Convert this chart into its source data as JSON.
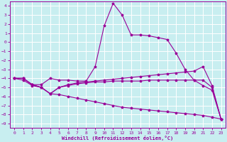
{
  "xlabel": "Windchill (Refroidissement éolien,°C)",
  "background_color": "#c8eef0",
  "line_color": "#990099",
  "grid_color": "#ffffff",
  "ylim": [
    -9.5,
    4.5
  ],
  "xlim": [
    -0.5,
    23.5
  ],
  "yticks": [
    -9,
    -8,
    -7,
    -6,
    -5,
    -4,
    -3,
    -2,
    -1,
    0,
    1,
    2,
    3,
    4
  ],
  "xticks": [
    0,
    1,
    2,
    3,
    4,
    5,
    6,
    7,
    8,
    9,
    10,
    11,
    12,
    13,
    14,
    15,
    16,
    17,
    18,
    19,
    20,
    21,
    22,
    23
  ],
  "lines": [
    {
      "x": [
        0,
        1,
        2,
        3,
        4,
        5,
        6,
        7,
        8,
        9,
        10,
        11,
        12,
        13,
        14,
        15,
        16,
        17,
        18,
        19,
        20,
        21,
        22,
        23
      ],
      "y": [
        -4,
        -4,
        -4.7,
        -4.7,
        -4.0,
        -4.2,
        -4.2,
        -4.3,
        -4.3,
        -2.7,
        1.8,
        4.3,
        3.0,
        0.8,
        0.8,
        0.7,
        0.5,
        0.3,
        -1.2,
        -3.0,
        -4.2,
        -4.8,
        -5.3,
        -8.5
      ]
    },
    {
      "x": [
        0,
        1,
        2,
        3,
        4,
        5,
        6,
        7,
        8,
        9,
        10,
        11,
        12,
        13,
        14,
        15,
        16,
        17,
        18,
        19,
        20,
        21,
        22,
        23
      ],
      "y": [
        -4,
        -4,
        -4.7,
        -5.0,
        -5.7,
        -5.0,
        -4.7,
        -4.5,
        -4.4,
        -4.3,
        -4.2,
        -4.1,
        -4.0,
        -3.9,
        -3.8,
        -3.7,
        -3.6,
        -3.5,
        -3.4,
        -3.3,
        -3.2,
        -2.7,
        -4.8,
        -8.5
      ]
    },
    {
      "x": [
        0,
        1,
        2,
        3,
        4,
        5,
        6,
        7,
        8,
        9,
        10,
        11,
        12,
        13,
        14,
        15,
        16,
        17,
        18,
        19,
        20,
        21,
        22,
        23
      ],
      "y": [
        -4,
        -4,
        -4.7,
        -5.0,
        -5.7,
        -5.0,
        -4.8,
        -4.6,
        -4.5,
        -4.4,
        -4.4,
        -4.3,
        -4.3,
        -4.3,
        -4.3,
        -4.2,
        -4.2,
        -4.2,
        -4.2,
        -4.2,
        -4.2,
        -4.2,
        -5.0,
        -8.5
      ]
    },
    {
      "x": [
        0,
        1,
        2,
        3,
        4,
        5,
        6,
        7,
        8,
        9,
        10,
        11,
        12,
        13,
        14,
        15,
        16,
        17,
        18,
        19,
        20,
        21,
        22,
        23
      ],
      "y": [
        -4,
        -4.2,
        -4.8,
        -5.0,
        -5.7,
        -5.8,
        -6.0,
        -6.2,
        -6.4,
        -6.6,
        -6.8,
        -7.0,
        -7.2,
        -7.3,
        -7.4,
        -7.5,
        -7.6,
        -7.7,
        -7.8,
        -7.9,
        -8.0,
        -8.1,
        -8.3,
        -8.5
      ]
    }
  ]
}
